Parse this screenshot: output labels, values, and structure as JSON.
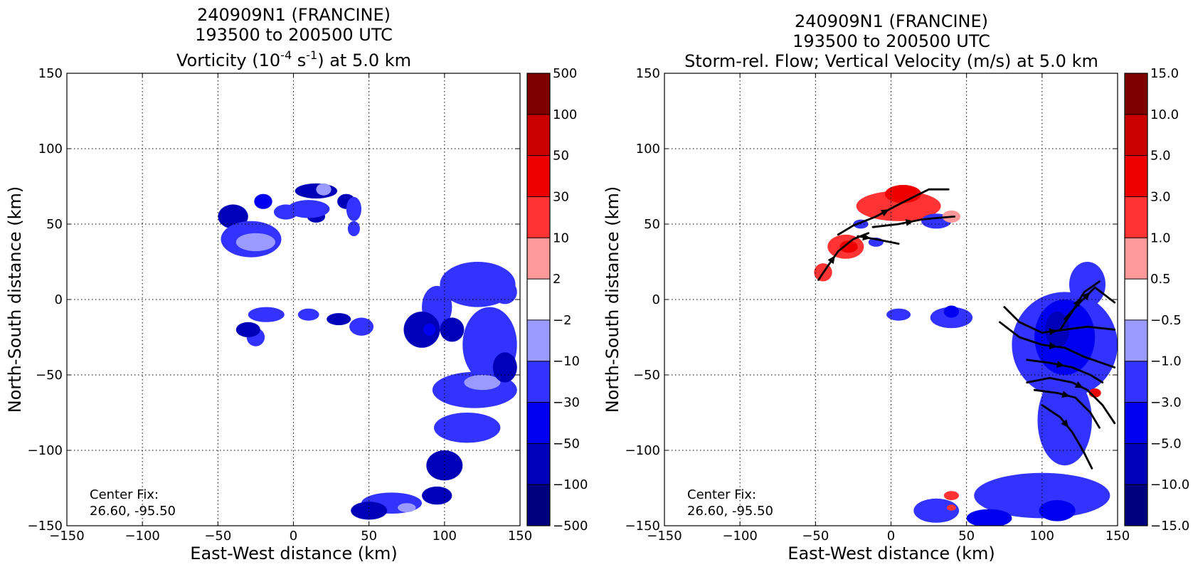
{
  "chart_data": [
    {
      "type": "heatmap",
      "title_lines": [
        "240909N1 (FRANCINE)",
        "193500 to 200500 UTC"
      ],
      "title_units": {
        "prefix": "Vorticity (10",
        "exp1": "-4",
        "mid": " s",
        "exp2": "-1",
        "suffix": ") at 5.0 km"
      },
      "xlabel": "East-West distance (km)",
      "ylabel": "North-South distance (km)",
      "xlim": [
        -150,
        150
      ],
      "ylim": [
        -150,
        150
      ],
      "xticks": [
        -150,
        -100,
        -50,
        0,
        50,
        100,
        150
      ],
      "yticks": [
        -150,
        -100,
        -50,
        0,
        50,
        100,
        150
      ],
      "grid": true,
      "annotation": [
        "Center Fix:",
        "26.60, -95.50"
      ],
      "colorbar": {
        "levels": [
          -500,
          -100,
          -50,
          -30,
          -10,
          -2,
          2,
          10,
          30,
          50,
          100,
          500
        ],
        "labels": [
          "−500",
          "−100",
          "−50",
          "−30",
          "−10",
          "−2",
          "2",
          "10",
          "30",
          "50",
          "100",
          "500"
        ],
        "colors": [
          "#00007f",
          "#0000b8",
          "#0000f0",
          "#3333ff",
          "#9a9aff",
          "#ffffff",
          "#ff9999",
          "#ff3333",
          "#ee0000",
          "#c80000",
          "#7f0000"
        ]
      },
      "regions": [
        {
          "level": 1,
          "x": -40,
          "y": 55,
          "rx": 10,
          "ry": 8
        },
        {
          "level": 1,
          "x": 15,
          "y": 72,
          "rx": 14,
          "ry": 5
        },
        {
          "level": 2,
          "x": -20,
          "y": 65,
          "rx": 6,
          "ry": 5
        },
        {
          "level": 1,
          "x": 35,
          "y": 65,
          "rx": 6,
          "ry": 5
        },
        {
          "level": 1,
          "x": 15,
          "y": 55,
          "rx": 6,
          "ry": 4
        },
        {
          "level": 3,
          "x": -28,
          "y": 40,
          "rx": 20,
          "ry": 12
        },
        {
          "level": 4,
          "x": -25,
          "y": 38,
          "rx": 13,
          "ry": 6
        },
        {
          "level": 4,
          "x": 20,
          "y": 73,
          "rx": 5,
          "ry": 4
        },
        {
          "level": 3,
          "x": 10,
          "y": 60,
          "rx": 14,
          "ry": 6
        },
        {
          "level": 3,
          "x": 40,
          "y": 60,
          "rx": 5,
          "ry": 8
        },
        {
          "level": 3,
          "x": 40,
          "y": 47,
          "rx": 4,
          "ry": 5
        },
        {
          "level": 3,
          "x": -5,
          "y": 58,
          "rx": 8,
          "ry": 5
        },
        {
          "level": 3,
          "x": -18,
          "y": -10,
          "rx": 12,
          "ry": 5
        },
        {
          "level": 3,
          "x": 10,
          "y": -10,
          "rx": 7,
          "ry": 4
        },
        {
          "level": 3,
          "x": -25,
          "y": -25,
          "rx": 6,
          "ry": 6
        },
        {
          "level": 1,
          "x": -30,
          "y": -20,
          "rx": 8,
          "ry": 5
        },
        {
          "level": 1,
          "x": 30,
          "y": -13,
          "rx": 8,
          "ry": 4
        },
        {
          "level": 3,
          "x": 45,
          "y": -18,
          "rx": 8,
          "ry": 6
        },
        {
          "level": 3,
          "x": 122,
          "y": 10,
          "rx": 25,
          "ry": 15
        },
        {
          "level": 3,
          "x": 130,
          "y": -30,
          "rx": 18,
          "ry": 25
        },
        {
          "level": 3,
          "x": 120,
          "y": -60,
          "rx": 28,
          "ry": 12
        },
        {
          "level": 4,
          "x": 125,
          "y": -55,
          "rx": 12,
          "ry": 5
        },
        {
          "level": 3,
          "x": 115,
          "y": -85,
          "rx": 22,
          "ry": 10
        },
        {
          "level": 3,
          "x": 95,
          "y": -5,
          "rx": 10,
          "ry": 14
        },
        {
          "level": 1,
          "x": 85,
          "y": -20,
          "rx": 12,
          "ry": 12
        },
        {
          "level": 1,
          "x": 105,
          "y": -20,
          "rx": 8,
          "ry": 8
        },
        {
          "level": 1,
          "x": 140,
          "y": -45,
          "rx": 8,
          "ry": 10
        },
        {
          "level": 1,
          "x": 100,
          "y": -110,
          "rx": 12,
          "ry": 10
        },
        {
          "level": 3,
          "x": 65,
          "y": -135,
          "rx": 20,
          "ry": 7
        },
        {
          "level": 4,
          "x": 75,
          "y": -138,
          "rx": 6,
          "ry": 3
        },
        {
          "level": 1,
          "x": 50,
          "y": -140,
          "rx": 12,
          "ry": 6
        },
        {
          "level": 1,
          "x": 95,
          "y": -130,
          "rx": 10,
          "ry": 6
        },
        {
          "level": 2,
          "x": 90,
          "y": -20,
          "rx": 4,
          "ry": 4
        },
        {
          "level": 3,
          "x": 140,
          "y": 5,
          "rx": 8,
          "ry": 8
        }
      ]
    },
    {
      "type": "heatmap",
      "title_lines": [
        "240909N1 (FRANCINE)",
        "193500 to 200500 UTC",
        "Storm-rel. Flow; Vertical Velocity (m/s) at 5.0 km"
      ],
      "xlabel": "East-West distance (km)",
      "ylabel": "North-South distance (km)",
      "xlim": [
        -150,
        150
      ],
      "ylim": [
        -150,
        150
      ],
      "xticks": [
        -150,
        -100,
        -50,
        0,
        50,
        100,
        150
      ],
      "yticks": [
        -150,
        -100,
        -50,
        0,
        50,
        100,
        150
      ],
      "grid": true,
      "annotation": [
        "Center Fix:",
        "26.60, -95.50"
      ],
      "colorbar": {
        "levels": [
          -15.0,
          -10.0,
          -5.0,
          -3.0,
          -1.0,
          -0.5,
          0.5,
          1.0,
          3.0,
          5.0,
          10.0,
          15.0
        ],
        "labels": [
          "−15.0",
          "−10.0",
          "−5.0",
          "−3.0",
          "−1.0",
          "−0.5",
          "0.5",
          "1.0",
          "3.0",
          "5.0",
          "10.0",
          "15.0"
        ],
        "colors": [
          "#00007f",
          "#0000b8",
          "#0000f0",
          "#3333ff",
          "#9a9aff",
          "#ffffff",
          "#ff9999",
          "#ff3333",
          "#ee0000",
          "#c80000",
          "#7f0000"
        ]
      },
      "regions": [
        {
          "level": 7,
          "x": 5,
          "y": 62,
          "rx": 28,
          "ry": 10
        },
        {
          "level": 7,
          "x": -30,
          "y": 35,
          "rx": 12,
          "ry": 8
        },
        {
          "level": 7,
          "x": -45,
          "y": 18,
          "rx": 6,
          "ry": 6
        },
        {
          "level": 8,
          "x": 8,
          "y": 70,
          "rx": 12,
          "ry": 6
        },
        {
          "level": 8,
          "x": -28,
          "y": 35,
          "rx": 6,
          "ry": 4
        },
        {
          "level": 3,
          "x": 30,
          "y": 52,
          "rx": 10,
          "ry": 5
        },
        {
          "level": 6,
          "x": 40,
          "y": 55,
          "rx": 6,
          "ry": 4
        },
        {
          "level": 3,
          "x": 5,
          "y": -10,
          "rx": 8,
          "ry": 4
        },
        {
          "level": 3,
          "x": 40,
          "y": -12,
          "rx": 14,
          "ry": 7
        },
        {
          "level": 2,
          "x": 40,
          "y": -8,
          "rx": 5,
          "ry": 4
        },
        {
          "level": 3,
          "x": 115,
          "y": -30,
          "rx": 35,
          "ry": 35
        },
        {
          "level": 2,
          "x": 115,
          "y": -25,
          "rx": 20,
          "ry": 25
        },
        {
          "level": 1,
          "x": 110,
          "y": -20,
          "rx": 8,
          "ry": 12
        },
        {
          "level": 3,
          "x": 130,
          "y": 10,
          "rx": 12,
          "ry": 15
        },
        {
          "level": 3,
          "x": 115,
          "y": -80,
          "rx": 18,
          "ry": 30
        },
        {
          "level": 3,
          "x": 100,
          "y": -130,
          "rx": 45,
          "ry": 15
        },
        {
          "level": 2,
          "x": 65,
          "y": -145,
          "rx": 15,
          "ry": 6
        },
        {
          "level": 2,
          "x": 110,
          "y": -140,
          "rx": 12,
          "ry": 7
        },
        {
          "level": 3,
          "x": 30,
          "y": -140,
          "rx": 15,
          "ry": 8
        },
        {
          "level": 7,
          "x": 40,
          "y": -130,
          "rx": 5,
          "ry": 3
        },
        {
          "level": 7,
          "x": 40,
          "y": -138,
          "rx": 3,
          "ry": 2
        },
        {
          "level": 8,
          "x": 135,
          "y": -62,
          "rx": 4,
          "ry": 3
        },
        {
          "level": 3,
          "x": -20,
          "y": 50,
          "rx": 5,
          "ry": 3
        },
        {
          "level": 3,
          "x": -10,
          "y": 38,
          "rx": 5,
          "ry": 3
        }
      ],
      "streamlines": [
        [
          [
            -48,
            13
          ],
          [
            -42,
            22
          ],
          [
            -35,
            32
          ],
          [
            -25,
            40
          ],
          [
            -15,
            44
          ]
        ],
        [
          [
            -22,
            42
          ],
          [
            -10,
            40
          ],
          [
            5,
            37
          ]
        ],
        [
          [
            -35,
            43
          ],
          [
            -25,
            49
          ],
          [
            -10,
            55
          ],
          [
            3,
            62
          ],
          [
            15,
            68
          ],
          [
            25,
            73
          ],
          [
            38,
            73
          ]
        ],
        [
          [
            -12,
            48
          ],
          [
            5,
            50
          ],
          [
            20,
            53
          ],
          [
            30,
            54
          ],
          [
            42,
            55
          ]
        ],
        [
          [
            75,
            -5
          ],
          [
            85,
            -15
          ],
          [
            100,
            -22
          ],
          [
            115,
            -20
          ],
          [
            130,
            -18
          ],
          [
            148,
            -20
          ]
        ],
        [
          [
            72,
            -15
          ],
          [
            85,
            -25
          ],
          [
            100,
            -30
          ],
          [
            115,
            -32
          ],
          [
            128,
            -38
          ],
          [
            148,
            -45
          ]
        ],
        [
          [
            90,
            -40
          ],
          [
            105,
            -42
          ],
          [
            120,
            -45
          ],
          [
            132,
            -50
          ],
          [
            140,
            -55
          ]
        ],
        [
          [
            90,
            -55
          ],
          [
            105,
            -52
          ],
          [
            120,
            -55
          ],
          [
            130,
            -60
          ],
          [
            140,
            -70
          ],
          [
            148,
            -82
          ]
        ],
        [
          [
            95,
            -60
          ],
          [
            110,
            -62
          ],
          [
            122,
            -65
          ],
          [
            132,
            -75
          ],
          [
            138,
            -85
          ]
        ],
        [
          [
            100,
            -70
          ],
          [
            112,
            -78
          ],
          [
            120,
            -88
          ],
          [
            127,
            -100
          ],
          [
            133,
            -112
          ]
        ],
        [
          [
            115,
            -13
          ],
          [
            125,
            -2
          ],
          [
            135,
            8
          ],
          [
            148,
            -2
          ]
        ],
        [
          [
            112,
            -20
          ],
          [
            120,
            -8
          ],
          [
            128,
            5
          ],
          [
            138,
            12
          ]
        ]
      ]
    }
  ]
}
